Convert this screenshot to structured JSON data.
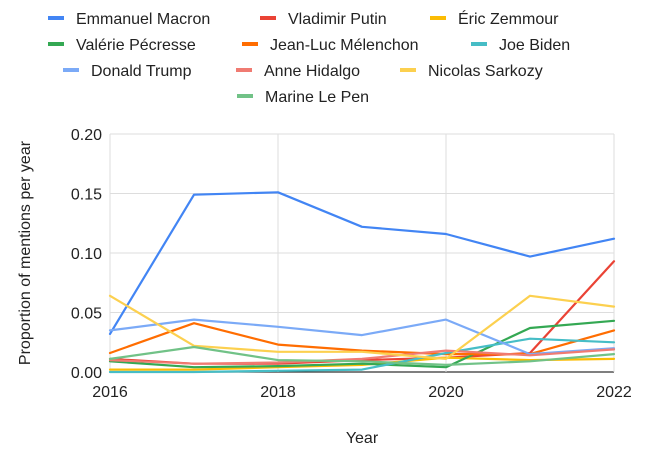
{
  "chart_data": {
    "type": "line",
    "title": "",
    "xlabel": "Year",
    "ylabel": "Proportion of mentions per year",
    "xlim": [
      2016,
      2022
    ],
    "ylim": [
      0,
      0.2
    ],
    "x_ticks": [
      "2016",
      "2018",
      "2020",
      "2022"
    ],
    "y_ticks": [
      "0.00",
      "0.05",
      "0.10",
      "0.15",
      "0.20"
    ],
    "grid": true,
    "legend_position": "top",
    "x": [
      2016,
      2017,
      2018,
      2019,
      2020,
      2021,
      2022
    ],
    "series": [
      {
        "name": "Emmanuel Macron",
        "color": "#4285f4",
        "values": [
          0.032,
          0.149,
          0.151,
          0.122,
          0.116,
          0.097,
          0.112
        ]
      },
      {
        "name": "Vladimir Putin",
        "color": "#ea4335",
        "values": [
          0.011,
          0.007,
          0.007,
          0.01,
          0.012,
          0.016,
          0.093
        ]
      },
      {
        "name": "Éric Zemmour",
        "color": "#fbbc04",
        "values": [
          0.002,
          0.002,
          0.004,
          0.006,
          0.012,
          0.01,
          0.011
        ]
      },
      {
        "name": "Valérie Pécresse",
        "color": "#34a853",
        "values": [
          0.009,
          0.004,
          0.005,
          0.007,
          0.004,
          0.037,
          0.043
        ]
      },
      {
        "name": "Jean-Luc Mélenchon",
        "color": "#ff6d01",
        "values": [
          0.016,
          0.041,
          0.023,
          0.018,
          0.015,
          0.015,
          0.035
        ]
      },
      {
        "name": "Joe Biden",
        "color": "#46bdc6",
        "values": [
          0.0,
          0.0,
          0.001,
          0.002,
          0.016,
          0.028,
          0.025
        ]
      },
      {
        "name": "Donald Trump",
        "color": "#7baaf7",
        "values": [
          0.035,
          0.044,
          0.038,
          0.031,
          0.044,
          0.015,
          0.02
        ]
      },
      {
        "name": "Anne Hidalgo",
        "color": "#f07b72",
        "values": [
          0.01,
          0.007,
          0.008,
          0.011,
          0.018,
          0.014,
          0.019
        ]
      },
      {
        "name": "Nicolas Sarkozy",
        "color": "#fcd04f",
        "values": [
          0.064,
          0.022,
          0.017,
          0.017,
          0.011,
          0.064,
          0.055
        ]
      },
      {
        "name": "Marine Le Pen",
        "color": "#71c287",
        "values": [
          0.011,
          0.021,
          0.01,
          0.009,
          0.006,
          0.009,
          0.015
        ]
      }
    ]
  }
}
